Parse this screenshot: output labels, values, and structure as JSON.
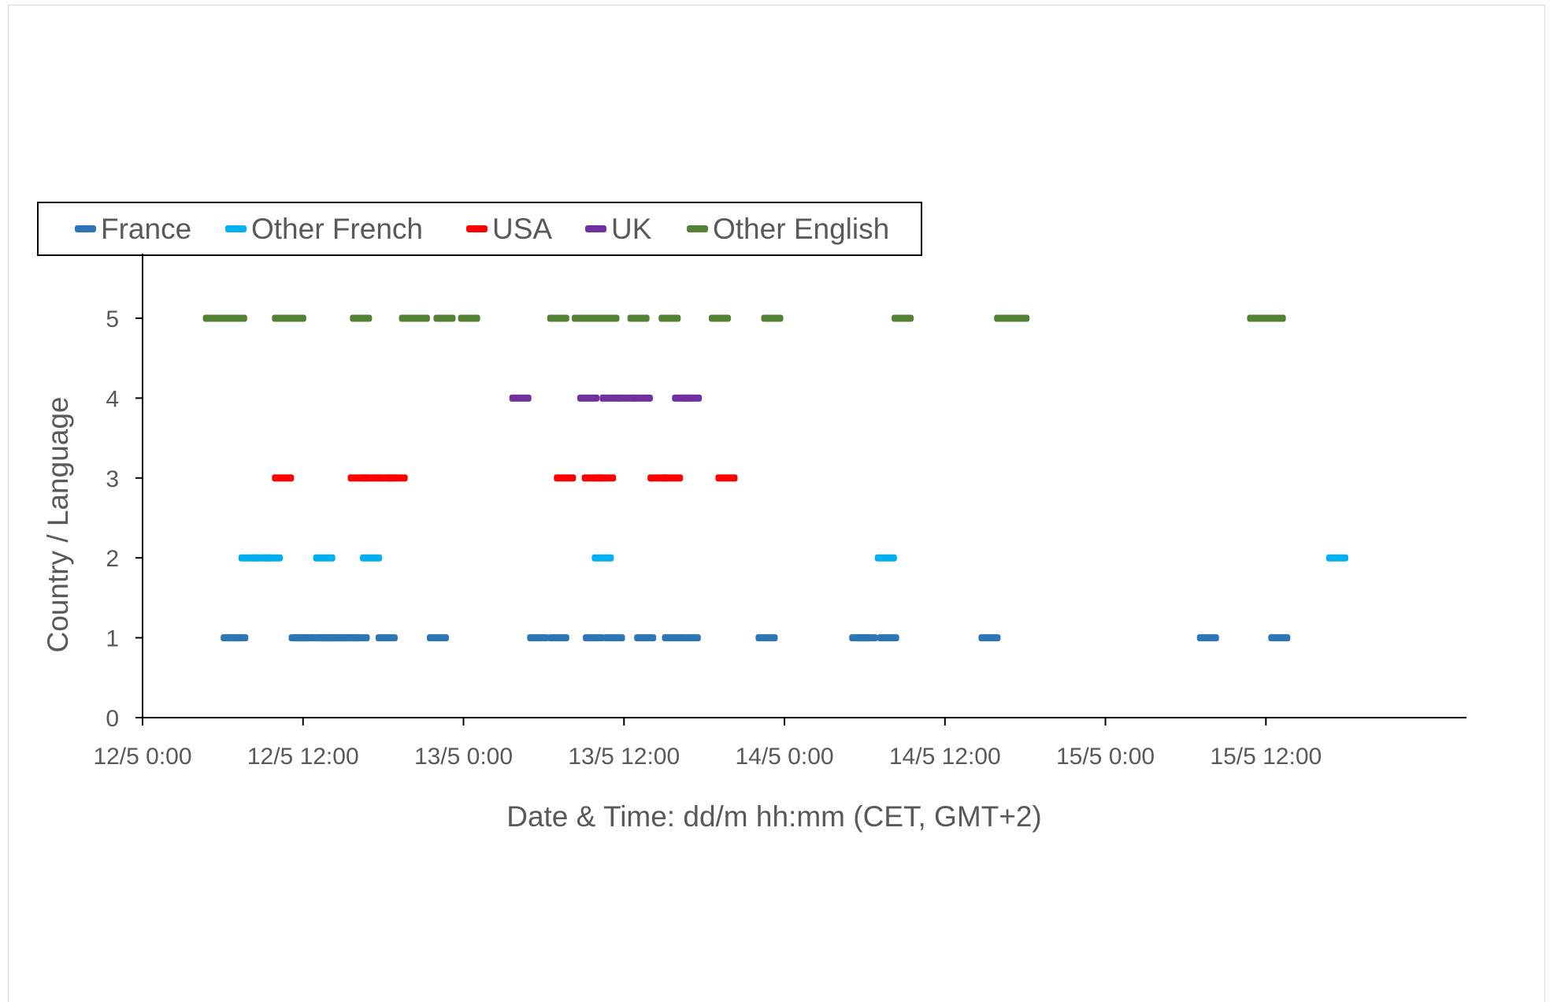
{
  "chart_data": {
    "type": "scatter",
    "title": "",
    "xlabel": "Date & Time: dd/m hh:mm (CET, GMT+2)",
    "ylabel": "Country / Language",
    "xlim": [
      "2024-05-12T00:00",
      "2024-05-16T03:00"
    ],
    "ylim": [
      0,
      5
    ],
    "y_ticks": [
      0,
      1,
      2,
      3,
      4,
      5
    ],
    "x_ticks": [
      {
        "value": "2024-05-12T00:00",
        "label": "12/5 0:00"
      },
      {
        "value": "2024-05-12T12:00",
        "label": "12/5 12:00"
      },
      {
        "value": "2024-05-13T00:00",
        "label": "13/5 0:00"
      },
      {
        "value": "2024-05-13T12:00",
        "label": "13/5 12:00"
      },
      {
        "value": "2024-05-14T00:00",
        "label": "14/5 0:00"
      },
      {
        "value": "2024-05-14T12:00",
        "label": "14/5 12:00"
      },
      {
        "value": "2024-05-15T00:00",
        "label": "15/5 0:00"
      },
      {
        "value": "2024-05-15T12:00",
        "label": "15/5 12:00"
      }
    ],
    "grid": false,
    "legend": "top",
    "series": [
      {
        "name": "France",
        "color": "#2e75b6",
        "y": 1,
        "x": [
          "2024-05-12T06:40",
          "2024-05-12T07:05",
          "2024-05-12T11:45",
          "2024-05-12T12:05",
          "2024-05-12T13:10",
          "2024-05-12T13:45",
          "2024-05-12T14:15",
          "2024-05-12T14:40",
          "2024-05-12T15:35",
          "2024-05-12T16:10",
          "2024-05-12T18:15",
          "2024-05-12T22:05",
          "2024-05-13T05:35",
          "2024-05-13T07:05",
          "2024-05-13T09:45",
          "2024-05-13T11:15",
          "2024-05-13T13:35",
          "2024-05-13T15:40",
          "2024-05-13T16:55",
          "2024-05-13T22:40",
          "2024-05-14T05:40",
          "2024-05-14T06:10",
          "2024-05-14T07:45",
          "2024-05-14T15:20",
          "2024-05-15T07:40",
          "2024-05-15T13:00"
        ]
      },
      {
        "name": "Other French",
        "color": "#00b0f0",
        "y": 2,
        "x": [
          "2024-05-12T08:00",
          "2024-05-12T08:55",
          "2024-05-12T09:40",
          "2024-05-12T13:35",
          "2024-05-12T17:05",
          "2024-05-13T10:25",
          "2024-05-14T07:35",
          "2024-05-15T17:20"
        ]
      },
      {
        "name": "USA",
        "color": "#ff0000",
        "y": 3,
        "x": [
          "2024-05-12T10:30",
          "2024-05-12T16:10",
          "2024-05-12T17:05",
          "2024-05-12T18:10",
          "2024-05-12T19:00",
          "2024-05-13T07:35",
          "2024-05-13T09:40",
          "2024-05-13T10:35",
          "2024-05-13T14:35",
          "2024-05-13T15:35",
          "2024-05-13T19:40"
        ]
      },
      {
        "name": "UK",
        "color": "#7030a0",
        "y": 4,
        "x": [
          "2024-05-13T04:15",
          "2024-05-13T09:20",
          "2024-05-13T11:00",
          "2024-05-13T12:10",
          "2024-05-13T13:20",
          "2024-05-13T16:25",
          "2024-05-13T17:00"
        ]
      },
      {
        "name": "Other English",
        "color": "#548235",
        "y": 5,
        "x": [
          "2024-05-12T05:20",
          "2024-05-12T06:15",
          "2024-05-12T07:00",
          "2024-05-12T10:30",
          "2024-05-12T11:25",
          "2024-05-12T16:20",
          "2024-05-12T20:00",
          "2024-05-12T20:40",
          "2024-05-12T22:35",
          "2024-05-13T00:25",
          "2024-05-13T07:05",
          "2024-05-13T08:55",
          "2024-05-13T09:50",
          "2024-05-13T10:50",
          "2024-05-13T13:05",
          "2024-05-13T15:25",
          "2024-05-13T19:10",
          "2024-05-13T23:05",
          "2024-05-14T08:50",
          "2024-05-14T16:30",
          "2024-05-14T17:30",
          "2024-05-15T11:25",
          "2024-05-15T12:40"
        ]
      }
    ]
  }
}
